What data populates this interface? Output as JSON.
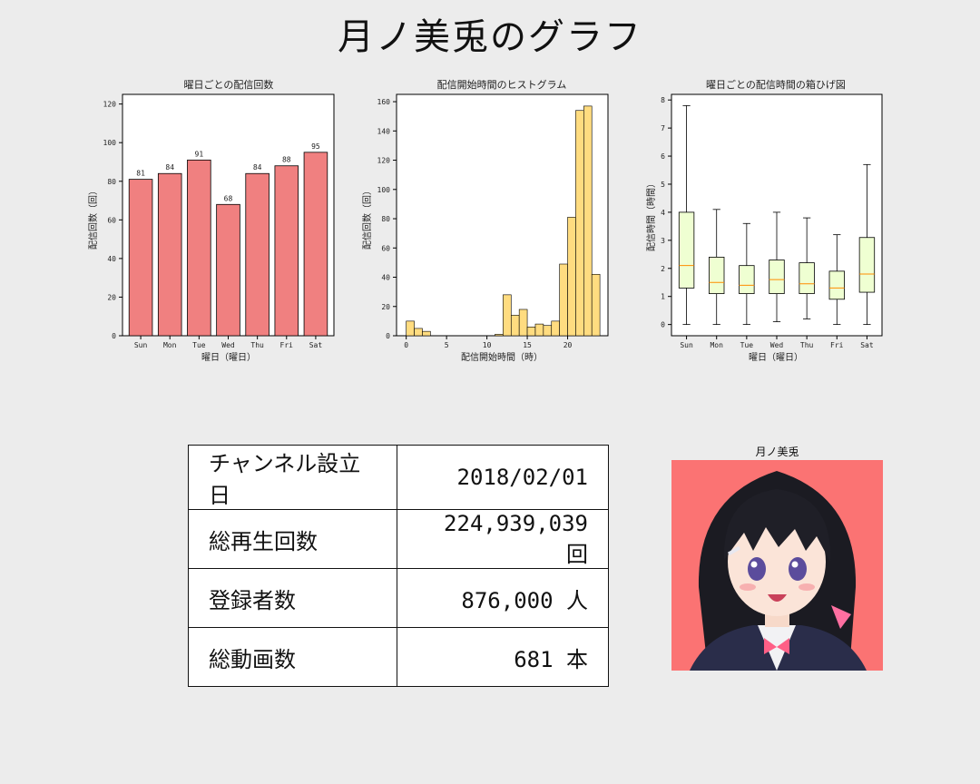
{
  "page": {
    "title": "月ノ美兎のグラフ"
  },
  "charts": {
    "bar_title": "曜日ごとの配信回数",
    "bar_xlabel": "曜日（曜日）",
    "bar_ylabel": "配信回数（回）",
    "hist_title": "配信開始時間のヒストグラム",
    "hist_xlabel": "配信開始時間（時）",
    "hist_ylabel": "配信回数（回）",
    "box_title": "曜日ごとの配信時間の箱ひげ図",
    "box_xlabel": "曜日（曜日）",
    "box_ylabel": "配信時間（時間）"
  },
  "chart_data": [
    {
      "type": "bar",
      "title": "曜日ごとの配信回数",
      "xlabel": "曜日（曜日）",
      "ylabel": "配信回数（回）",
      "categories": [
        "Sun",
        "Mon",
        "Tue",
        "Wed",
        "Thu",
        "Fri",
        "Sat"
      ],
      "values": [
        81,
        84,
        91,
        68,
        84,
        88,
        95
      ],
      "data_labels": [
        "81",
        "84",
        "91",
        "68",
        "84",
        "88",
        "95"
      ],
      "ylim": [
        0,
        125
      ],
      "yticks": [
        0,
        20,
        40,
        60,
        80,
        100,
        120
      ],
      "color": "#f08080",
      "grid": false
    },
    {
      "type": "bar",
      "subtype": "histogram",
      "title": "配信開始時間のヒストグラム",
      "xlabel": "配信開始時間（時）",
      "ylabel": "配信回数（回）",
      "bin_width": 1,
      "bins": [
        {
          "x0": 0,
          "x1": 1,
          "count": 10
        },
        {
          "x0": 1,
          "x1": 2,
          "count": 5
        },
        {
          "x0": 2,
          "x1": 3,
          "count": 3
        },
        {
          "x0": 3,
          "x1": 4,
          "count": 0
        },
        {
          "x0": 4,
          "x1": 5,
          "count": 0
        },
        {
          "x0": 5,
          "x1": 6,
          "count": 0
        },
        {
          "x0": 6,
          "x1": 7,
          "count": 0
        },
        {
          "x0": 7,
          "x1": 8,
          "count": 0
        },
        {
          "x0": 8,
          "x1": 9,
          "count": 0
        },
        {
          "x0": 9,
          "x1": 10,
          "count": 0
        },
        {
          "x0": 10,
          "x1": 11,
          "count": 0
        },
        {
          "x0": 11,
          "x1": 12,
          "count": 1
        },
        {
          "x0": 12,
          "x1": 13,
          "count": 28
        },
        {
          "x0": 13,
          "x1": 14,
          "count": 14
        },
        {
          "x0": 14,
          "x1": 15,
          "count": 18
        },
        {
          "x0": 15,
          "x1": 16,
          "count": 6
        },
        {
          "x0": 16,
          "x1": 17,
          "count": 8
        },
        {
          "x0": 17,
          "x1": 18,
          "count": 7
        },
        {
          "x0": 18,
          "x1": 19,
          "count": 10
        },
        {
          "x0": 19,
          "x1": 20,
          "count": 49
        },
        {
          "x0": 20,
          "x1": 21,
          "count": 81
        },
        {
          "x0": 21,
          "x1": 22,
          "count": 154
        },
        {
          "x0": 22,
          "x1": 23,
          "count": 157
        },
        {
          "x0": 23,
          "x1": 24,
          "count": 42
        }
      ],
      "xlim": [
        -1.2,
        25
      ],
      "ylim": [
        0,
        165
      ],
      "xticks": [
        0,
        5,
        10,
        15,
        20
      ],
      "yticks": [
        0,
        20,
        40,
        60,
        80,
        100,
        120,
        140,
        160
      ],
      "color": "#ffdc80",
      "grid": false
    },
    {
      "type": "box",
      "title": "曜日ごとの配信時間の箱ひげ図",
      "xlabel": "曜日（曜日）",
      "ylabel": "配信時間（時間）",
      "categories": [
        "Sun",
        "Mon",
        "Tue",
        "Wed",
        "Thu",
        "Fri",
        "Sat"
      ],
      "boxes": [
        {
          "min": 0.0,
          "q1": 1.3,
          "median": 2.1,
          "q3": 4.0,
          "max": 7.8
        },
        {
          "min": 0.0,
          "q1": 1.1,
          "median": 1.5,
          "q3": 2.4,
          "max": 4.1
        },
        {
          "min": 0.0,
          "q1": 1.1,
          "median": 1.4,
          "q3": 2.1,
          "max": 3.6
        },
        {
          "min": 0.1,
          "q1": 1.1,
          "median": 1.6,
          "q3": 2.3,
          "max": 4.0
        },
        {
          "min": 0.2,
          "q1": 1.1,
          "median": 1.45,
          "q3": 2.2,
          "max": 3.8
        },
        {
          "min": 0.0,
          "q1": 0.9,
          "median": 1.3,
          "q3": 1.9,
          "max": 3.2
        },
        {
          "min": 0.0,
          "q1": 1.15,
          "median": 1.8,
          "q3": 3.1,
          "max": 5.7
        }
      ],
      "ylim": [
        -0.4,
        8.2
      ],
      "yticks": [
        0,
        1,
        2,
        3,
        4,
        5,
        6,
        7,
        8
      ],
      "box_color": "#efffd2",
      "median_color": "#ff8c00",
      "grid": false
    }
  ],
  "stats": {
    "rows": [
      {
        "label": "チャンネル設立日",
        "value": "2018/02/01"
      },
      {
        "label": "総再生回数",
        "value": "224,939,039 回"
      },
      {
        "label": "登録者数",
        "value": "876,000 人"
      },
      {
        "label": "総動画数",
        "value": "681 本"
      }
    ]
  },
  "portrait": {
    "caption": "月ノ美兎",
    "background_color": "#fb7373"
  }
}
